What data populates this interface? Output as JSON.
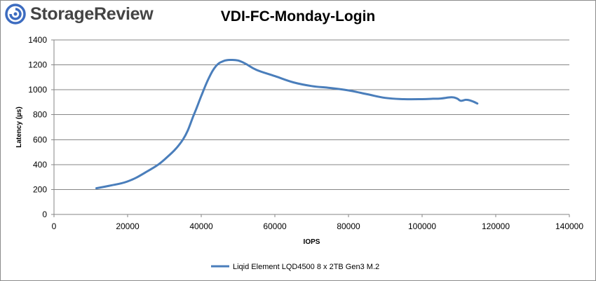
{
  "brand": {
    "name": "StorageReview",
    "logo_icon": "storagereview-logo-icon",
    "logo_color": "#3d6cc0"
  },
  "chart_data": {
    "type": "line",
    "title": "VDI-FC-Monday-Login",
    "xlabel": "IOPS",
    "ylabel": "Latency (µs)",
    "xlim": [
      0,
      140000
    ],
    "ylim": [
      0,
      1400
    ],
    "x_ticks": [
      0,
      20000,
      40000,
      60000,
      80000,
      100000,
      120000,
      140000
    ],
    "y_ticks": [
      0,
      200,
      400,
      600,
      800,
      1000,
      1200,
      1400
    ],
    "x_tick_labels": [
      "0",
      "20000",
      "40000",
      "60000",
      "80000",
      "100000",
      "120000",
      "140000"
    ],
    "y_tick_labels": [
      "0",
      "200",
      "400",
      "600",
      "800",
      "1000",
      "1200",
      "1400"
    ],
    "grid": "horizontal",
    "legend_position": "bottom",
    "series": [
      {
        "name": "Liqid Element LQD4500 8 x 2TB Gen3 M.2",
        "color": "#4a7ebb",
        "x": [
          11500,
          15000,
          20000,
          25000,
          30000,
          35000,
          38000,
          40000,
          42000,
          44000,
          46000,
          48000,
          50000,
          52000,
          55000,
          60000,
          65000,
          70000,
          75000,
          80000,
          85000,
          90000,
          95000,
          100000,
          103000,
          105000,
          108000,
          109500,
          110500,
          112000,
          113500,
          115000
        ],
        "y": [
          210,
          230,
          265,
          340,
          440,
          600,
          800,
          950,
          1090,
          1190,
          1230,
          1240,
          1235,
          1210,
          1160,
          1110,
          1060,
          1030,
          1015,
          995,
          965,
          935,
          925,
          925,
          928,
          930,
          940,
          930,
          912,
          920,
          910,
          890
        ]
      }
    ]
  }
}
